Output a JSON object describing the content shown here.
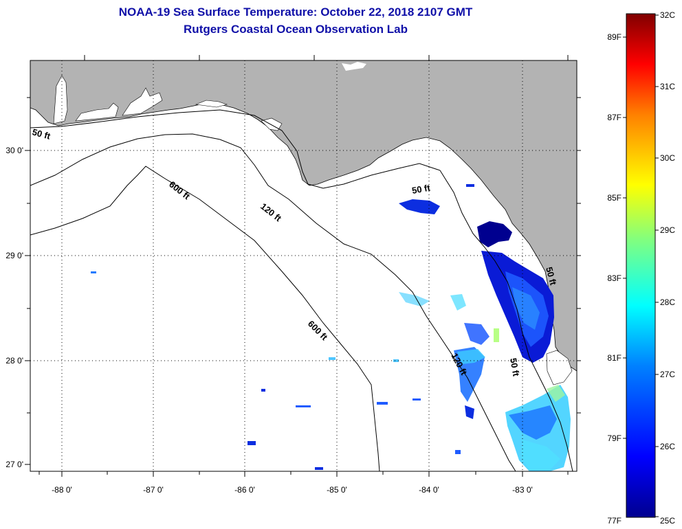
{
  "title": "NOAA-19 Sea Surface Temperature:  October 22, 2018 2107 GMT",
  "subtitle": "Rutgers Coastal Ocean Observation Lab",
  "map": {
    "lat_labels": [
      "30 0'",
      "29 0'",
      "28 0'",
      "27 0'"
    ],
    "lon_labels": [
      "-88 0'",
      "-87 0'",
      "-86 0'",
      "-85 0'",
      "-84 0'",
      "-83 0'"
    ],
    "contours": [
      "50 ft",
      "600 ft",
      "120 ft",
      "50 ft",
      "600 ft",
      "120 ft",
      "50 ft",
      "50 ft"
    ],
    "land_color": "#b3b3b3",
    "water_color": "#ffffff"
  },
  "colorbar": {
    "celsius": [
      "32C",
      "31C",
      "30C",
      "29C",
      "28C",
      "27C",
      "26C",
      "25C"
    ],
    "fahrenheit": [
      "89F",
      "87F",
      "85F",
      "83F",
      "81F",
      "79F",
      "77F"
    ],
    "range_c": [
      25,
      32
    ],
    "colors": [
      "#00008f",
      "#0000ff",
      "#0080ff",
      "#00ffff",
      "#80ff80",
      "#ffff00",
      "#ff8000",
      "#ff0000",
      "#800000"
    ]
  }
}
